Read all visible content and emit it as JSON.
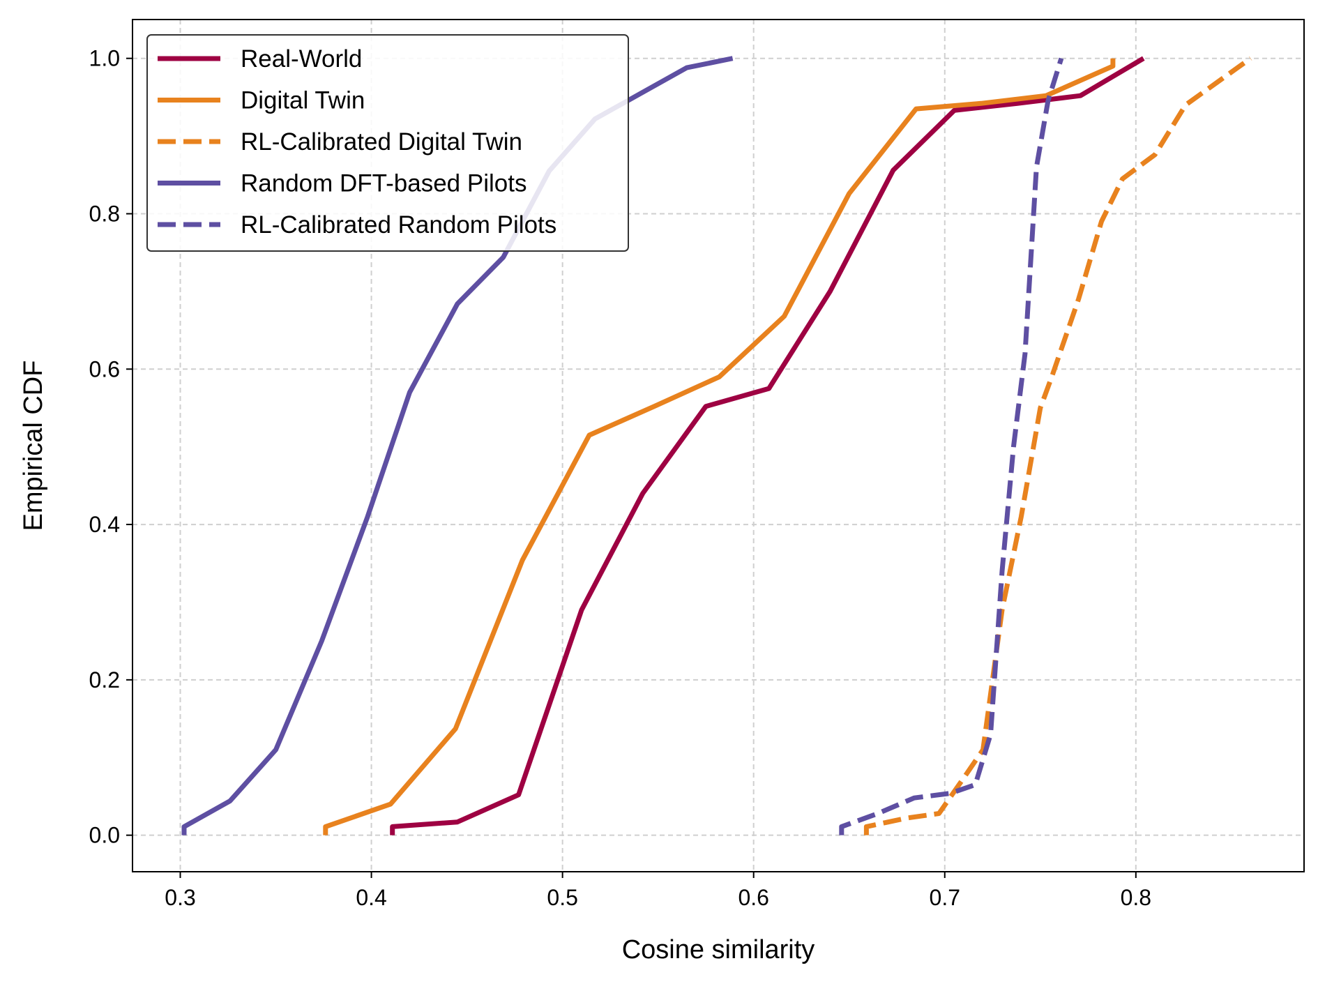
{
  "chart_data": {
    "type": "line",
    "xlabel": "Cosine similarity",
    "ylabel": "Empirical CDF",
    "xlim": [
      0.275,
      0.888
    ],
    "ylim": [
      -0.047,
      1.05
    ],
    "xticks": [
      0.3,
      0.4,
      0.5,
      0.6,
      0.7,
      0.8
    ],
    "xtick_labels": [
      "0.3",
      "0.4",
      "0.5",
      "0.6",
      "0.7",
      "0.8"
    ],
    "yticks": [
      0.0,
      0.2,
      0.4,
      0.6,
      0.8,
      1.0
    ],
    "ytick_labels": [
      "0.0",
      "0.2",
      "0.4",
      "0.6",
      "0.8",
      "1.0"
    ],
    "grid": true,
    "legend_position": "top-left",
    "series": [
      {
        "name": "Real-World",
        "color": "#9e0142",
        "style": "solid",
        "points": [
          [
            0.411,
            0.0
          ],
          [
            0.411,
            0.011
          ],
          [
            0.445,
            0.017
          ],
          [
            0.477,
            0.052
          ],
          [
            0.51,
            0.29
          ],
          [
            0.542,
            0.44
          ],
          [
            0.575,
            0.552
          ],
          [
            0.608,
            0.575
          ],
          [
            0.64,
            0.7
          ],
          [
            0.673,
            0.856
          ],
          [
            0.705,
            0.933
          ],
          [
            0.738,
            0.942
          ],
          [
            0.771,
            0.952
          ],
          [
            0.804,
            1.0
          ]
        ]
      },
      {
        "name": "Digital Twin",
        "color": "#e8821e",
        "style": "solid",
        "points": [
          [
            0.376,
            0.0
          ],
          [
            0.376,
            0.011
          ],
          [
            0.41,
            0.04
          ],
          [
            0.444,
            0.137
          ],
          [
            0.479,
            0.354
          ],
          [
            0.514,
            0.515
          ],
          [
            0.548,
            0.552
          ],
          [
            0.582,
            0.59
          ],
          [
            0.616,
            0.668
          ],
          [
            0.65,
            0.826
          ],
          [
            0.685,
            0.935
          ],
          [
            0.719,
            0.942
          ],
          [
            0.753,
            0.952
          ],
          [
            0.788,
            0.99
          ],
          [
            0.788,
            1.0
          ]
        ]
      },
      {
        "name": "RL-Calibrated Digital Twin",
        "color": "#e8821e",
        "style": "dashed",
        "points": [
          [
            0.659,
            0.0
          ],
          [
            0.659,
            0.011
          ],
          [
            0.68,
            0.022
          ],
          [
            0.697,
            0.028
          ],
          [
            0.71,
            0.074
          ],
          [
            0.72,
            0.11
          ],
          [
            0.73,
            0.29
          ],
          [
            0.74,
            0.41
          ],
          [
            0.75,
            0.55
          ],
          [
            0.756,
            0.59
          ],
          [
            0.77,
            0.69
          ],
          [
            0.782,
            0.79
          ],
          [
            0.793,
            0.845
          ],
          [
            0.81,
            0.876
          ],
          [
            0.826,
            0.94
          ],
          [
            0.86,
            1.0
          ]
        ]
      },
      {
        "name": "Random DFT-based Pilots",
        "color": "#5e4fa2",
        "style": "solid",
        "points": [
          [
            0.302,
            0.0
          ],
          [
            0.302,
            0.011
          ],
          [
            0.326,
            0.044
          ],
          [
            0.35,
            0.11
          ],
          [
            0.374,
            0.25
          ],
          [
            0.398,
            0.41
          ],
          [
            0.42,
            0.57
          ],
          [
            0.445,
            0.684
          ],
          [
            0.469,
            0.744
          ],
          [
            0.493,
            0.855
          ],
          [
            0.517,
            0.922
          ],
          [
            0.541,
            0.955
          ],
          [
            0.565,
            0.988
          ],
          [
            0.589,
            1.0
          ]
        ]
      },
      {
        "name": "RL-Calibrated Random Pilots",
        "color": "#5e4fa2",
        "style": "dashed",
        "points": [
          [
            0.646,
            0.0
          ],
          [
            0.646,
            0.011
          ],
          [
            0.665,
            0.028
          ],
          [
            0.684,
            0.048
          ],
          [
            0.703,
            0.054
          ],
          [
            0.716,
            0.065
          ],
          [
            0.724,
            0.13
          ],
          [
            0.73,
            0.34
          ],
          [
            0.736,
            0.5
          ],
          [
            0.742,
            0.62
          ],
          [
            0.748,
            0.86
          ],
          [
            0.754,
            0.945
          ],
          [
            0.761,
            1.0
          ]
        ]
      }
    ]
  }
}
